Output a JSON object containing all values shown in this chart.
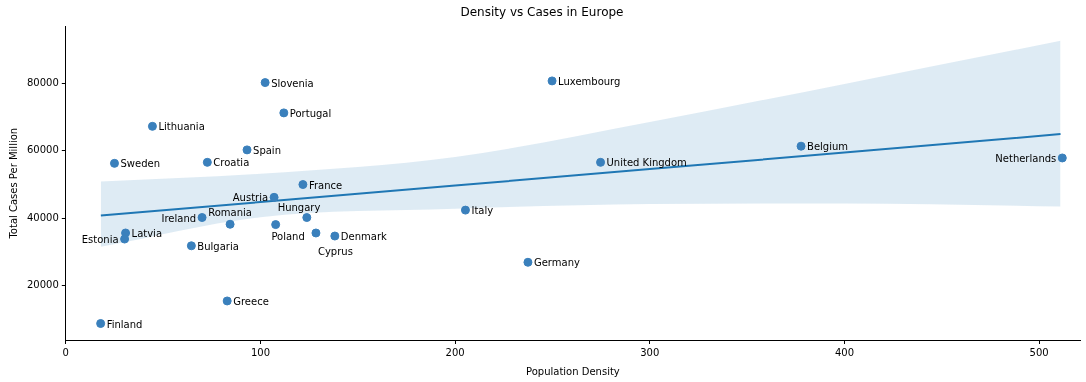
{
  "chart_data": {
    "type": "scatter",
    "title": "Density vs Cases in Europe",
    "xlabel": "Population Density",
    "ylabel": "Total Cases Per Million",
    "xlim": [
      0,
      521
    ],
    "ylim": [
      3800,
      97000
    ],
    "xticks": [
      0,
      100,
      200,
      300,
      400,
      500
    ],
    "yticks": [
      20000,
      40000,
      60000,
      80000
    ],
    "grid": false,
    "legend": false,
    "series": [
      {
        "marker": "circle",
        "color": "#3a80bc",
        "x": [
          17.9,
          25,
          44.5,
          30.7,
          30.2,
          64.5,
          72.7,
          70,
          84.4,
          107.8,
          128.5,
          138.2,
          123.8,
          107,
          121.8,
          93.1,
          112,
          102.4,
          82.9,
          249.8,
          274.7,
          377.7,
          511.9,
          205.3,
          237.4
        ],
        "values": [
          8700,
          56300,
          67300,
          35600,
          33800,
          31800,
          56600,
          40200,
          38200,
          38100,
          35600,
          34700,
          40200,
          46200,
          50000,
          60300,
          71300,
          80300,
          15400,
          80800,
          56600,
          61400,
          57900,
          42400,
          26900
        ]
      },
      {
        "type": "line",
        "marker": "none",
        "color": "#1f77b4",
        "x": [
          18,
          100,
          200,
          300,
          400,
          511
        ],
        "values": [
          40800,
          44800,
          49700,
          54600,
          59500,
          65000
        ],
        "lower": [
          31500,
          40300,
          42800,
          44200,
          44400,
          43500
        ],
        "upper": [
          50900,
          53200,
          58200,
          68600,
          79900,
          92700
        ]
      }
    ],
    "annotations": [
      {
        "text": "Finland",
        "x": 17.9,
        "y": 8700
      },
      {
        "text": "Sweden",
        "x": 25,
        "y": 56300
      },
      {
        "text": "Lithuania",
        "x": 44.5,
        "y": 67300
      },
      {
        "text": "Latvia",
        "x": 30.7,
        "y": 35600
      },
      {
        "text": "Estonia",
        "x": 30.2,
        "y": 33800
      },
      {
        "text": "Bulgaria",
        "x": 64.5,
        "y": 31800
      },
      {
        "text": "Croatia",
        "x": 72.7,
        "y": 56600
      },
      {
        "text": "Ireland",
        "x": 70,
        "y": 40200
      },
      {
        "text": "Romania",
        "x": 84.4,
        "y": 38200
      },
      {
        "text": "Hungary",
        "x": 107.8,
        "y": 38100
      },
      {
        "text": "Cyprus",
        "x": 128.5,
        "y": 35600
      },
      {
        "text": "Denmark",
        "x": 138.2,
        "y": 34700
      },
      {
        "text": "Poland",
        "x": 123.8,
        "y": 40200
      },
      {
        "text": "Austria",
        "x": 107,
        "y": 46200
      },
      {
        "text": "France",
        "x": 121.8,
        "y": 50000
      },
      {
        "text": "Spain",
        "x": 93.1,
        "y": 60300
      },
      {
        "text": "Portugal",
        "x": 112,
        "y": 71300
      },
      {
        "text": "Slovenia",
        "x": 102.4,
        "y": 80300
      },
      {
        "text": "Greece",
        "x": 82.9,
        "y": 15400
      },
      {
        "text": "Luxembourg",
        "x": 249.8,
        "y": 80800
      },
      {
        "text": "United Kingdom",
        "x": 274.7,
        "y": 56600
      },
      {
        "text": "Belgium",
        "x": 377.7,
        "y": 61400
      },
      {
        "text": "Netherlands",
        "x": 511.9,
        "y": 57900
      },
      {
        "text": "Italy",
        "x": 205.3,
        "y": 42400
      },
      {
        "text": "Germany",
        "x": 237.4,
        "y": 26900
      }
    ]
  }
}
